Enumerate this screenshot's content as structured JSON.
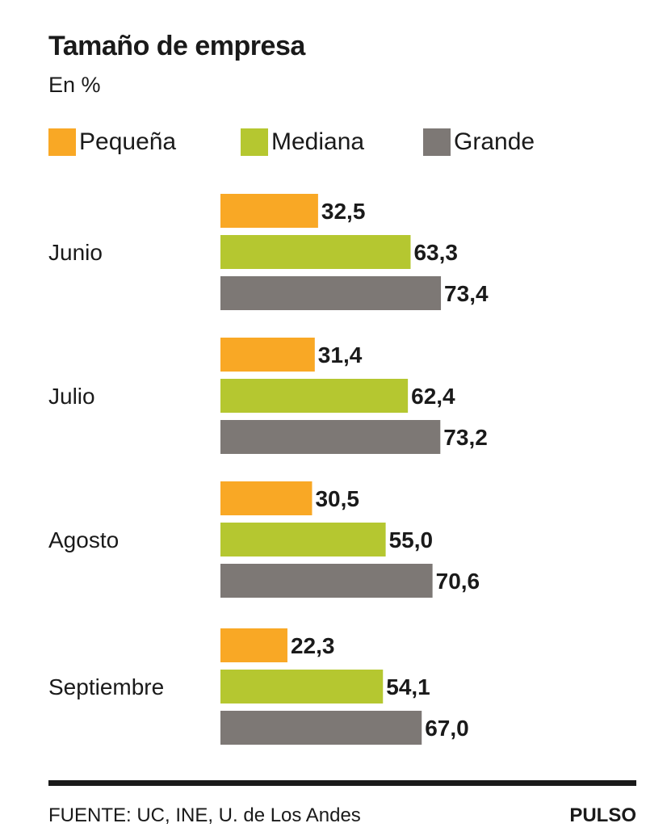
{
  "chart_data": {
    "type": "bar",
    "orientation": "horizontal",
    "title": "Tamaño de empresa",
    "subtitle": "En %",
    "categories": [
      "Junio",
      "Julio",
      "Agosto",
      "Septiembre"
    ],
    "series": [
      {
        "name": "Pequeña",
        "color": "#f9a825",
        "values": [
          32.5,
          31.4,
          30.5,
          22.3
        ]
      },
      {
        "name": "Mediana",
        "color": "#b5c730",
        "values": [
          63.3,
          62.4,
          55.0,
          54.1
        ]
      },
      {
        "name": "Grande",
        "color": "#7d7875",
        "values": [
          73.4,
          73.2,
          70.6,
          67.0
        ]
      }
    ],
    "value_labels": [
      [
        "32,5",
        "63,3",
        "73,4"
      ],
      [
        "31,4",
        "62,4",
        "73,2"
      ],
      [
        "30,5",
        "55,0",
        "70,6"
      ],
      [
        "22,3",
        "54,1",
        "67,0"
      ]
    ],
    "xlim": [
      0,
      100
    ],
    "grid": false,
    "legend_position": "top"
  },
  "footer": {
    "source": "FUENTE: UC, INE, U. de Los Andes",
    "brand": "PULSO"
  }
}
